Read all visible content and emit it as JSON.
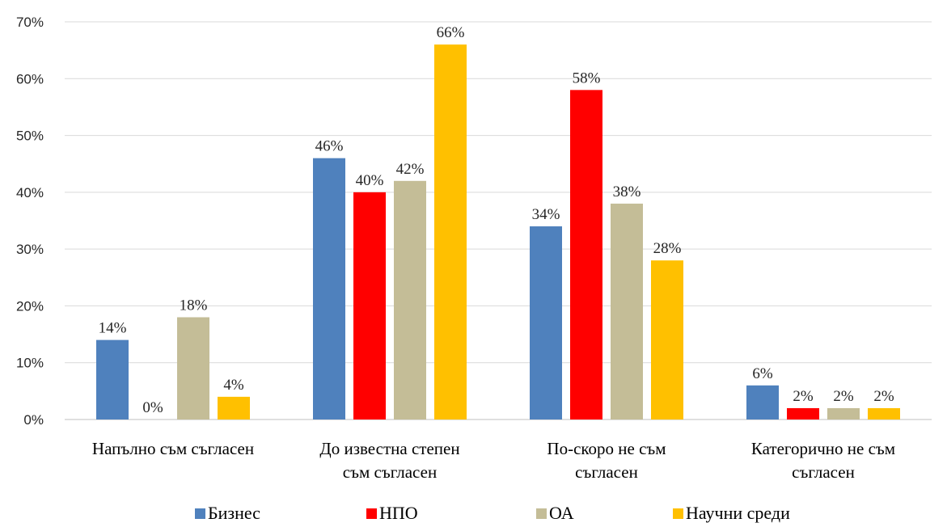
{
  "chart_data": {
    "type": "bar",
    "title": "",
    "xlabel": "",
    "ylabel": "",
    "ylim": [
      0,
      70
    ],
    "y_ticks": [
      "0%",
      "10%",
      "20%",
      "30%",
      "40%",
      "50%",
      "60%",
      "70%"
    ],
    "grid": true,
    "legend_position": "bottom",
    "categories": [
      [
        "Напълно съм съгласен"
      ],
      [
        "До известна степен",
        "съм съгласен"
      ],
      [
        "По-скоро не съм",
        "съгласен"
      ],
      [
        "Категорично не съм",
        "съгласен"
      ]
    ],
    "series": [
      {
        "name": "Бизнес",
        "color": "#4f81bd",
        "values": [
          14,
          46,
          34,
          6
        ],
        "labels": [
          "14%",
          "46%",
          "34%",
          "6%"
        ]
      },
      {
        "name": "НПО",
        "color": "#ff0000",
        "values": [
          0,
          40,
          58,
          2
        ],
        "labels": [
          "0%",
          "40%",
          "58%",
          "2%"
        ]
      },
      {
        "name": "ОА",
        "color": "#c4bd97",
        "values": [
          18,
          42,
          38,
          2
        ],
        "labels": [
          "18%",
          "42%",
          "38%",
          "2%"
        ]
      },
      {
        "name": "Научни среди",
        "color": "#ffc000",
        "values": [
          4,
          66,
          28,
          2
        ],
        "labels": [
          "4%",
          "66%",
          "28%",
          "2%"
        ]
      }
    ]
  }
}
